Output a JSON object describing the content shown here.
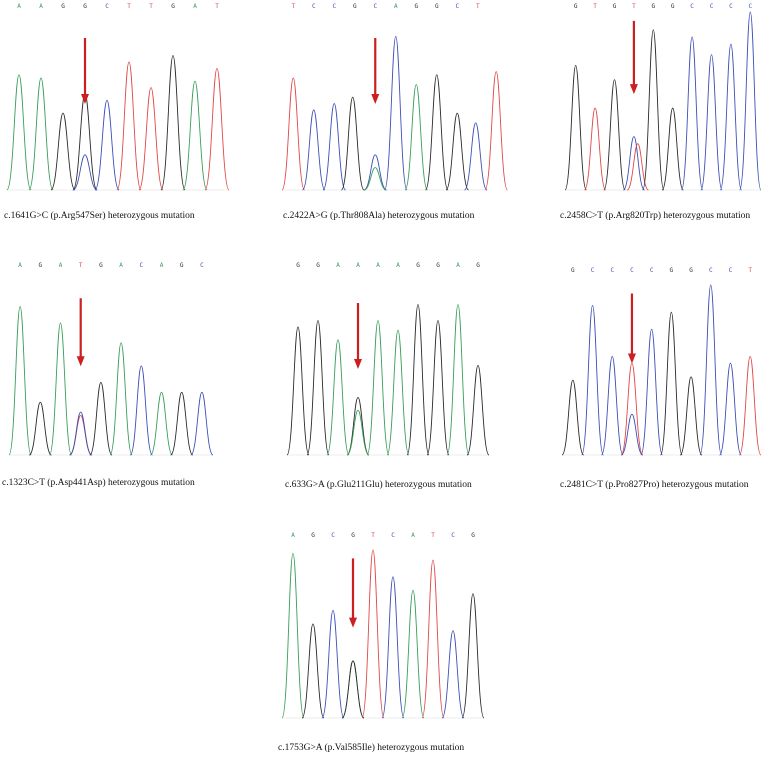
{
  "colors": {
    "A": "#3a9e5a",
    "C": "#3d4fb8",
    "G": "#2b2b2b",
    "T": "#e04848",
    "arrow": "#cc1f1f"
  },
  "panels": [
    {
      "bases": [
        "A",
        "A",
        "G",
        "G",
        "C",
        "T",
        "T",
        "G",
        "A",
        "T"
      ],
      "caption": "c.1641G>C (p.Arg547Ser) heterozygous mutation",
      "arrow_at": 3,
      "peaks": [
        {
          "b": "A",
          "c": 0,
          "h": 0.72
        },
        {
          "b": "A",
          "c": 1,
          "h": 0.7
        },
        {
          "b": "G",
          "c": 2,
          "h": 0.48
        },
        {
          "b": "G",
          "c": 3,
          "h": 0.6
        },
        {
          "b": "C",
          "c": 3,
          "h": 0.22
        },
        {
          "b": "C",
          "c": 4,
          "h": 0.56
        },
        {
          "b": "T",
          "c": 5,
          "h": 0.8
        },
        {
          "b": "T",
          "c": 6,
          "h": 0.64
        },
        {
          "b": "G",
          "c": 7,
          "h": 0.84
        },
        {
          "b": "A",
          "c": 8,
          "h": 0.68
        },
        {
          "b": "T",
          "c": 9,
          "h": 0.76
        }
      ]
    },
    {
      "bases": [
        "T",
        "C",
        "C",
        "G",
        "C",
        "A",
        "G",
        "G",
        "C",
        "T"
      ],
      "caption": "c.2422A>G (p.Thr808Ala)  heterozygous mutation",
      "arrow_at": 4,
      "peaks": [
        {
          "b": "T",
          "c": 0,
          "h": 0.7
        },
        {
          "b": "C",
          "c": 1,
          "h": 0.5
        },
        {
          "b": "C",
          "c": 2,
          "h": 0.54
        },
        {
          "b": "G",
          "c": 2.9,
          "h": 0.58
        },
        {
          "b": "C",
          "c": 4,
          "h": 0.22
        },
        {
          "b": "A",
          "c": 4,
          "h": 0.14
        },
        {
          "b": "C",
          "c": 5,
          "h": 0.96
        },
        {
          "b": "A",
          "c": 6,
          "h": 0.66
        },
        {
          "b": "G",
          "c": 7,
          "h": 0.72
        },
        {
          "b": "G",
          "c": 8,
          "h": 0.48
        },
        {
          "b": "C",
          "c": 8.9,
          "h": 0.42
        },
        {
          "b": "T",
          "c": 9.9,
          "h": 0.74
        }
      ]
    },
    {
      "bases": [
        "G",
        "T",
        "G",
        "T",
        "G",
        "G",
        "C",
        "C",
        "C",
        "C"
      ],
      "caption": "c.2458C>T (p.Arg820Trp)  heterozygous mutation",
      "arrow_at": 3,
      "peaks": [
        {
          "b": "G",
          "c": 0,
          "h": 0.7
        },
        {
          "b": "T",
          "c": 1,
          "h": 0.46
        },
        {
          "b": "G",
          "c": 2,
          "h": 0.62
        },
        {
          "b": "C",
          "c": 3,
          "h": 0.3
        },
        {
          "b": "T",
          "c": 3.2,
          "h": 0.26
        },
        {
          "b": "G",
          "c": 4,
          "h": 0.9
        },
        {
          "b": "G",
          "c": 5,
          "h": 0.46
        },
        {
          "b": "C",
          "c": 6,
          "h": 0.86
        },
        {
          "b": "C",
          "c": 7,
          "h": 0.76
        },
        {
          "b": "C",
          "c": 8,
          "h": 0.82
        },
        {
          "b": "C",
          "c": 9,
          "h": 1.0
        }
      ]
    },
    {
      "bases": [
        "A",
        "G",
        "A",
        "T",
        "G",
        "A",
        "C",
        "A",
        "G",
        "C"
      ],
      "caption": "c.1323C>T  (p.Asp441Asp) heterozygous mutation",
      "arrow_at": 3,
      "peaks": [
        {
          "b": "A",
          "c": 0,
          "h": 0.9
        },
        {
          "b": "G",
          "c": 1,
          "h": 0.32
        },
        {
          "b": "A",
          "c": 2,
          "h": 0.8
        },
        {
          "b": "T",
          "c": 3,
          "h": 0.24
        },
        {
          "b": "C",
          "c": 3,
          "h": 0.26
        },
        {
          "b": "G",
          "c": 4,
          "h": 0.44
        },
        {
          "b": "A",
          "c": 5,
          "h": 0.68
        },
        {
          "b": "C",
          "c": 6,
          "h": 0.54
        },
        {
          "b": "A",
          "c": 7,
          "h": 0.38
        },
        {
          "b": "G",
          "c": 8,
          "h": 0.38
        },
        {
          "b": "C",
          "c": 9,
          "h": 0.38
        }
      ]
    },
    {
      "bases": [
        "G",
        "G",
        "A",
        "A",
        "A",
        "A",
        "G",
        "G",
        "A",
        "G"
      ],
      "caption": "c.633G>A (p.Glu211Glu) heterozygous mutation",
      "arrow_at": 3,
      "peaks": [
        {
          "b": "G",
          "c": 0,
          "h": 0.8
        },
        {
          "b": "G",
          "c": 1,
          "h": 0.84
        },
        {
          "b": "A",
          "c": 2,
          "h": 0.72
        },
        {
          "b": "G",
          "c": 3,
          "h": 0.36
        },
        {
          "b": "A",
          "c": 3,
          "h": 0.28
        },
        {
          "b": "A",
          "c": 4,
          "h": 0.84
        },
        {
          "b": "A",
          "c": 5,
          "h": 0.78
        },
        {
          "b": "G",
          "c": 6,
          "h": 0.94
        },
        {
          "b": "G",
          "c": 7,
          "h": 0.84
        },
        {
          "b": "A",
          "c": 8,
          "h": 0.94
        },
        {
          "b": "G",
          "c": 9,
          "h": 0.56
        }
      ]
    },
    {
      "bases": [
        "G",
        "C",
        "C",
        "C",
        "C",
        "G",
        "G",
        "C",
        "C",
        "T"
      ],
      "caption": "c.2481C>T (p.Pro827Pro) heterozygous mutation",
      "arrow_at": 3,
      "peaks": [
        {
          "b": "G",
          "c": 0,
          "h": 0.44
        },
        {
          "b": "C",
          "c": 1,
          "h": 0.88
        },
        {
          "b": "C",
          "c": 2,
          "h": 0.58
        },
        {
          "b": "C",
          "c": 3,
          "h": 0.24
        },
        {
          "b": "T",
          "c": 3,
          "h": 0.54
        },
        {
          "b": "C",
          "c": 4,
          "h": 0.74
        },
        {
          "b": "G",
          "c": 5,
          "h": 0.84
        },
        {
          "b": "G",
          "c": 6,
          "h": 0.46
        },
        {
          "b": "C",
          "c": 7,
          "h": 1.0
        },
        {
          "b": "C",
          "c": 8,
          "h": 0.54
        },
        {
          "b": "T",
          "c": 9,
          "h": 0.58
        }
      ]
    },
    {
      "bases": [
        "A",
        "G",
        "C",
        "G",
        "T",
        "C",
        "A",
        "T",
        "C",
        "G"
      ],
      "caption": "c.1753G>A (p.Val585Ile)  heterozygous mutation",
      "arrow_at": 3,
      "peaks": [
        {
          "b": "A",
          "c": 0,
          "h": 0.98
        },
        {
          "b": "G",
          "c": 1,
          "h": 0.56
        },
        {
          "b": "C",
          "c": 2,
          "h": 0.64
        },
        {
          "b": "A",
          "c": 3,
          "h": 0.34
        },
        {
          "b": "G",
          "c": 3,
          "h": 0.34
        },
        {
          "b": "T",
          "c": 4,
          "h": 1.0
        },
        {
          "b": "C",
          "c": 5,
          "h": 0.84
        },
        {
          "b": "A",
          "c": 6,
          "h": 0.76
        },
        {
          "b": "T",
          "c": 7,
          "h": 0.94
        },
        {
          "b": "C",
          "c": 8,
          "h": 0.52
        },
        {
          "b": "G",
          "c": 9,
          "h": 0.74
        }
      ]
    }
  ]
}
